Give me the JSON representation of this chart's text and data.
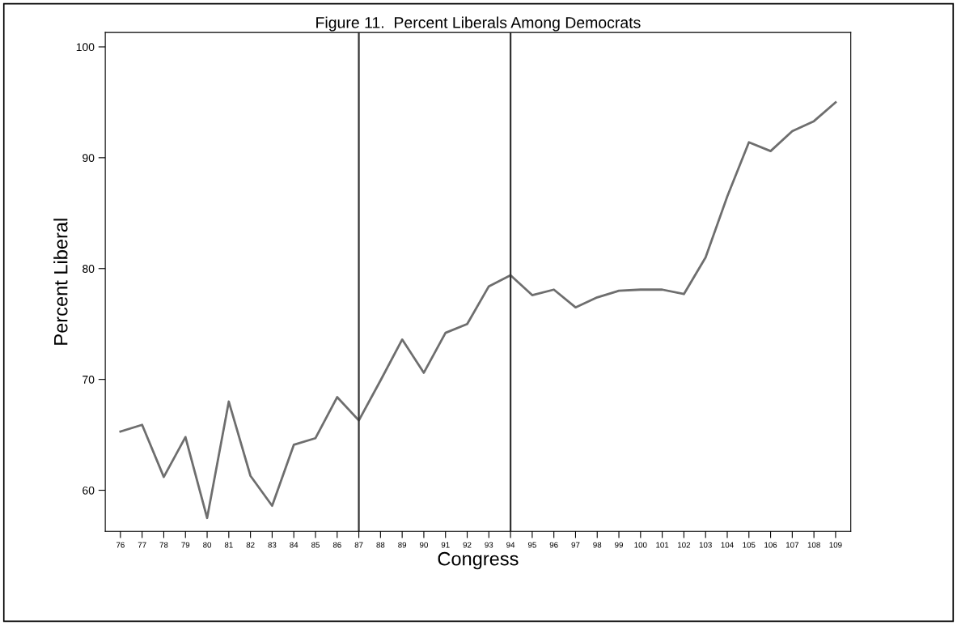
{
  "chart_data": {
    "type": "line",
    "title": "Figure 11.  Percent Liberals Among Democrats",
    "xlabel": "Congress",
    "ylabel": "Percent Liberal",
    "x": [
      76,
      77,
      78,
      79,
      80,
      81,
      82,
      83,
      84,
      85,
      86,
      87,
      88,
      89,
      90,
      91,
      92,
      93,
      94,
      95,
      96,
      97,
      98,
      99,
      100,
      101,
      102,
      103,
      104,
      105,
      106,
      107,
      108,
      109
    ],
    "series": [
      {
        "color": "#6e6e6e",
        "values": [
          65.3,
          65.9,
          61.2,
          64.8,
          57.5,
          68.0,
          61.3,
          58.6,
          64.1,
          64.7,
          68.4,
          66.3,
          69.9,
          73.6,
          70.6,
          74.2,
          75.0,
          78.4,
          79.4,
          77.6,
          78.1,
          76.5,
          77.4,
          78.0,
          78.1,
          78.1,
          77.7,
          81.0,
          86.5,
          91.4,
          90.6,
          92.4,
          93.3,
          95.0
        ]
      }
    ],
    "xlim": [
      75.3,
      109.7
    ],
    "xticks": [
      76,
      77,
      78,
      79,
      80,
      81,
      82,
      83,
      84,
      85,
      86,
      87,
      88,
      89,
      90,
      91,
      92,
      93,
      94,
      95,
      96,
      97,
      98,
      99,
      100,
      101,
      102,
      103,
      104,
      105,
      106,
      107,
      108,
      109
    ],
    "ylim": [
      56.3,
      101.3
    ],
    "yticks": [
      60,
      70,
      80,
      90,
      100
    ],
    "ref_lines": [
      {
        "axis": "x",
        "value": 87,
        "color": "#333333"
      },
      {
        "axis": "x",
        "value": 94,
        "color": "#333333"
      }
    ],
    "grid": false,
    "legend": false,
    "marker": "none",
    "line_style": "solid"
  }
}
